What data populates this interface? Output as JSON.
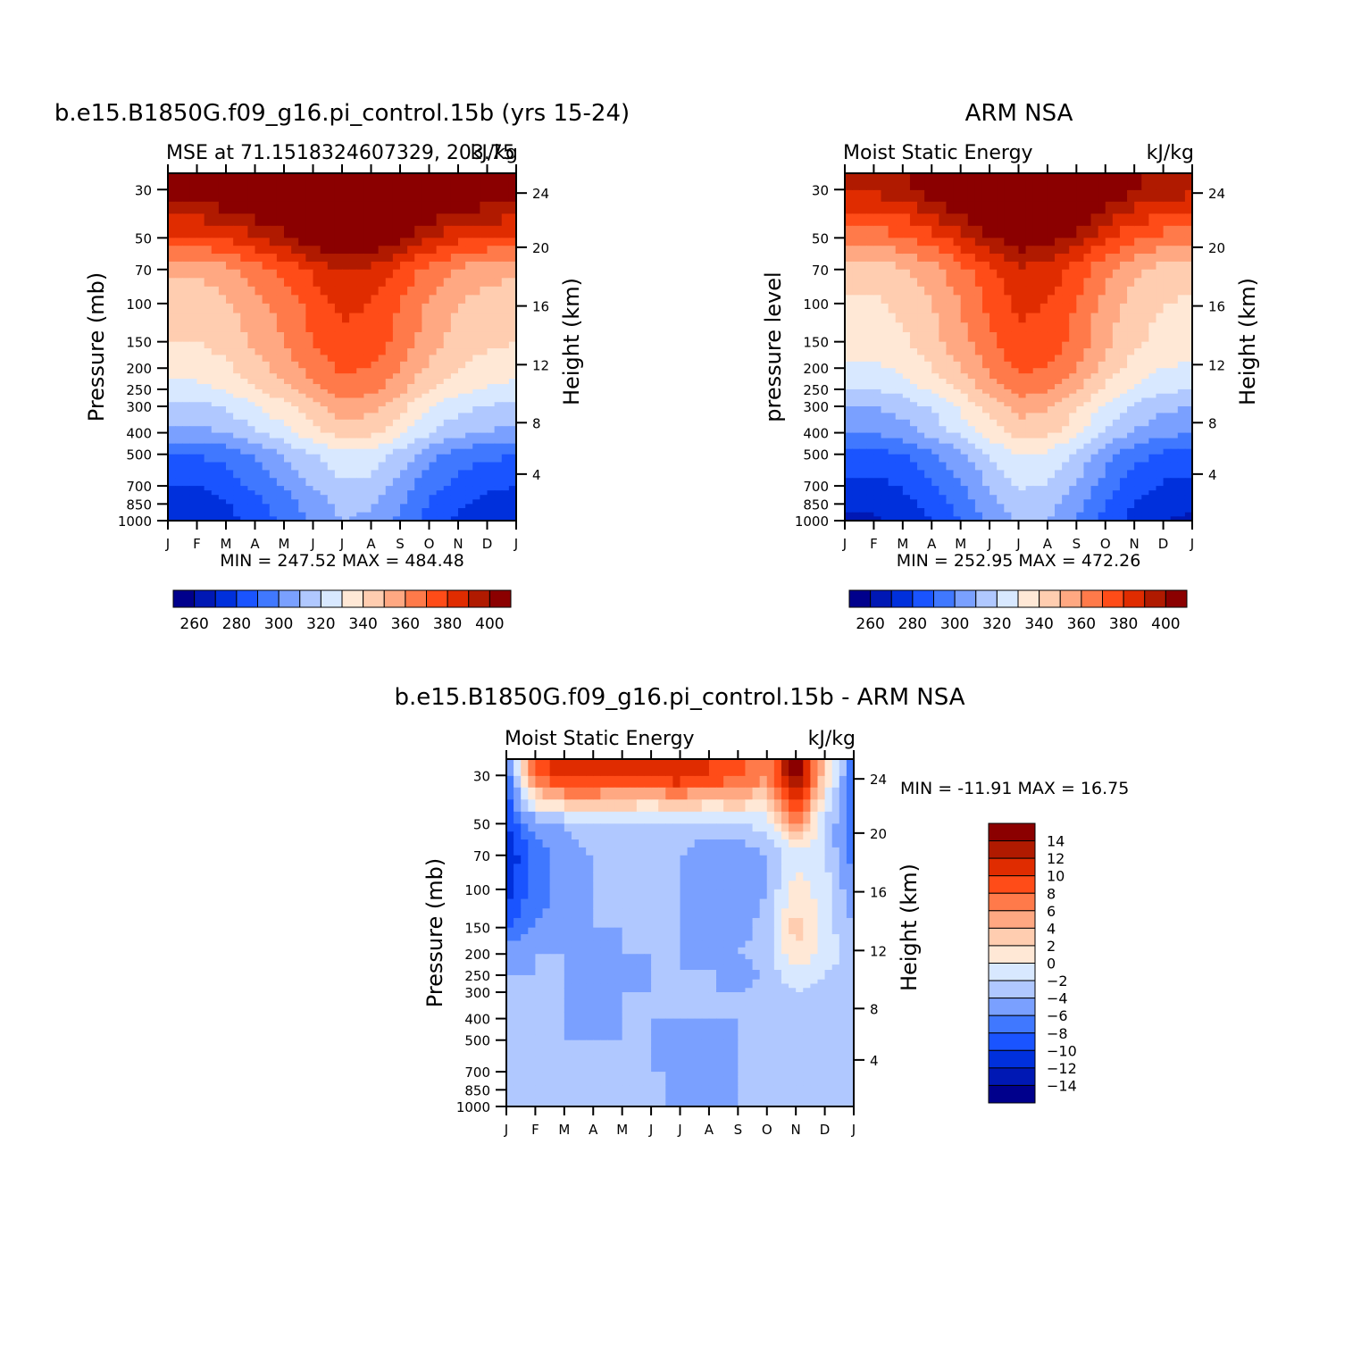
{
  "chart_data": [
    {
      "type": "heatmap",
      "title": "b.e15.B1850G.f09_g16.pi_control.15b (yrs 15-24)",
      "subtitle_left": "MSE at 71.1518324607329, 203.75",
      "subtitle_right": "kJ/kg",
      "ylabel": "Pressure (mb)",
      "ylabel_right": "Height (km)",
      "x_ticks": [
        "J",
        "F",
        "M",
        "A",
        "M",
        "J",
        "J",
        "A",
        "S",
        "O",
        "N",
        "D",
        "J"
      ],
      "y_ticks": [
        "30",
        "50",
        "70",
        "100",
        "150",
        "200",
        "250",
        "300",
        "400",
        "500",
        "700",
        "850",
        "1000"
      ],
      "y_ticks_right": [
        "24",
        "20",
        "16",
        "12",
        "8",
        "4"
      ],
      "minmax_text": "MIN = 247.52 MAX = 484.48",
      "colorbar_labels": [
        "260",
        "280",
        "300",
        "320",
        "340",
        "360",
        "380",
        "400"
      ],
      "levels": [
        250,
        260,
        270,
        280,
        290,
        300,
        310,
        320,
        330,
        340,
        350,
        360,
        370,
        380,
        390,
        400
      ],
      "field_model": {
        "surface": [
          262,
          262,
          266,
          274,
          282,
          292,
          300,
          298,
          288,
          276,
          268,
          264,
          262
        ],
        "surface_increase_by_level": [
          0,
          3,
          8,
          18,
          35,
          45,
          55,
          62,
          68,
          72,
          80,
          100,
          130
        ]
      }
    },
    {
      "type": "heatmap",
      "title": "ARM NSA",
      "subtitle_left": "Moist Static Energy",
      "subtitle_right": "kJ/kg",
      "ylabel": "pressure level",
      "ylabel_right": "Height (km)",
      "x_ticks": [
        "J",
        "F",
        "M",
        "A",
        "M",
        "J",
        "J",
        "A",
        "S",
        "O",
        "N",
        "D",
        "J"
      ],
      "y_ticks": [
        "30",
        "50",
        "70",
        "100",
        "150",
        "200",
        "250",
        "300",
        "400",
        "500",
        "700",
        "850",
        "1000"
      ],
      "y_ticks_right": [
        "24",
        "20",
        "16",
        "12",
        "8",
        "4"
      ],
      "minmax_text": "MIN = 252.95 MAX = 472.26",
      "colorbar_labels": [
        "260",
        "280",
        "300",
        "320",
        "340",
        "360",
        "380",
        "400"
      ],
      "levels": [
        250,
        260,
        270,
        280,
        290,
        300,
        310,
        320,
        330,
        340,
        350,
        360,
        370,
        380,
        390,
        400
      ],
      "field_model": {
        "surface": [
          258,
          258,
          262,
          270,
          280,
          292,
          302,
          300,
          290,
          276,
          266,
          260,
          258
        ],
        "surface_increase_by_level": [
          0,
          4,
          9,
          18,
          33,
          42,
          52,
          60,
          66,
          70,
          76,
          96,
          125
        ]
      }
    },
    {
      "type": "heatmap",
      "title": "b.e15.B1850G.f09_g16.pi_control.15b - ARM NSA",
      "subtitle_left": "Moist Static Energy",
      "subtitle_right": "kJ/kg",
      "ylabel": "Pressure (mb)",
      "ylabel_right": "Height (km)",
      "x_ticks": [
        "J",
        "F",
        "M",
        "A",
        "M",
        "J",
        "J",
        "A",
        "S",
        "O",
        "N",
        "D",
        "J"
      ],
      "y_ticks": [
        "30",
        "50",
        "70",
        "100",
        "150",
        "200",
        "250",
        "300",
        "400",
        "500",
        "700",
        "850",
        "1000"
      ],
      "y_ticks_right": [
        "24",
        "20",
        "16",
        "12",
        "8",
        "4"
      ],
      "minmax_text": "MIN = -11.91 MAX = 16.75",
      "colorbar_labels": [
        "14",
        "12",
        "10",
        "8",
        "6",
        "4",
        "2",
        "0",
        "-2",
        "-4",
        "-6",
        "-8",
        "-10",
        "-12",
        "-14"
      ],
      "levels": [
        -14,
        -12,
        -10,
        -8,
        -6,
        -4,
        -2,
        0,
        2,
        4,
        6,
        8,
        10,
        12,
        14
      ],
      "grid": [
        [
          -8,
          8,
          12,
          11,
          10,
          11,
          12,
          10,
          9,
          6,
          16,
          3,
          -8
        ],
        [
          -10,
          -5,
          -4,
          -2,
          -2,
          -4,
          -3,
          -3,
          -2,
          -1,
          6,
          -2,
          -8
        ],
        [
          -12,
          -7,
          -5,
          -4,
          -4,
          -4,
          -4,
          -5,
          -6,
          -4,
          -1,
          -2,
          -7
        ],
        [
          -11,
          -7,
          -5,
          -4,
          -4,
          -4,
          -4,
          -5,
          -6,
          -4,
          1,
          -1,
          -6
        ],
        [
          -8,
          -6,
          -5,
          -4,
          -4,
          -4,
          -4,
          -5,
          -5,
          -3,
          3,
          -1,
          -4
        ],
        [
          -5,
          -4,
          -4,
          -5,
          -4,
          -4,
          -4,
          -6,
          -4,
          -3,
          2,
          -1,
          -3
        ],
        [
          -4,
          -4,
          -4,
          -5,
          -5,
          -4,
          -4,
          -3,
          -6,
          -3,
          -1,
          -2,
          -3
        ],
        [
          -4,
          -4,
          -4,
          -4,
          -4,
          -4,
          -4,
          -4,
          -4,
          -3,
          -2,
          -3,
          -3
        ],
        [
          -4,
          -4,
          -4,
          -5,
          -4,
          -4,
          -4,
          -4,
          -4,
          -4,
          -4,
          -4,
          -4
        ],
        [
          -4,
          -4,
          -4,
          -4,
          -4,
          -4,
          -5,
          -5,
          -4,
          -4,
          -4,
          -4,
          -4
        ],
        [
          -3,
          -4,
          -3,
          -4,
          -4,
          -4,
          -4,
          -5,
          -4,
          -4,
          -4,
          -4,
          -4
        ],
        [
          -2,
          -3,
          -2,
          -3,
          -2,
          -3,
          -5,
          -6,
          -4,
          -3,
          -2,
          -2,
          -3
        ],
        [
          -4,
          -4,
          -4,
          -4,
          -4,
          -4,
          -4,
          -4,
          -4,
          -4,
          -4,
          -4,
          -4
        ]
      ]
    }
  ],
  "palettes": {
    "abs": [
      "#00008c",
      "#0018b4",
      "#0030dc",
      "#1a54ff",
      "#4078ff",
      "#7aa0ff",
      "#b0c8ff",
      "#d8e8ff",
      "#ffe8d6",
      "#ffcdb0",
      "#ffa882",
      "#ff7a4a",
      "#ff4c18",
      "#e02c00",
      "#b01a00",
      "#8b0000"
    ],
    "diff": [
      "#00008c",
      "#0018b4",
      "#0030dc",
      "#1a54ff",
      "#4078ff",
      "#7aa0ff",
      "#b0c8ff",
      "#d8e8ff",
      "#ffe8d6",
      "#ffcdb0",
      "#ffa882",
      "#ff7a4a",
      "#ff4c18",
      "#e02c00",
      "#b01a00",
      "#8b0000"
    ]
  }
}
